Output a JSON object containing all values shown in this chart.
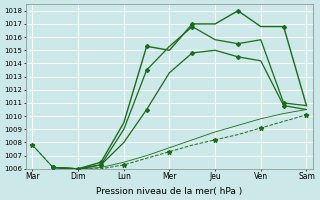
{
  "xlabel": "Pression niveau de la mer( hPa )",
  "xtick_labels": [
    "Mar",
    "Dim",
    "Lun",
    "Mer",
    "Jeu",
    "Ven",
    "Sam"
  ],
  "ylim": [
    1006,
    1018.5
  ],
  "yticks": [
    1006,
    1007,
    1008,
    1009,
    1010,
    1011,
    1012,
    1013,
    1014,
    1015,
    1016,
    1017,
    1018
  ],
  "background_color": "#cce8e8",
  "grid_color": "#ffffff",
  "line_color": "#1a6b1a",
  "figsize": [
    3.2,
    2.0
  ],
  "dpi": 100,
  "line1": {
    "x": [
      0,
      0.45,
      1.0,
      1.5,
      2.0,
      2.5,
      3.0,
      3.5,
      4.0,
      4.5,
      5.0,
      5.5,
      6.0
    ],
    "y": [
      1007.8,
      1006.1,
      1006.0,
      1006.0,
      1006.3,
      1006.8,
      1007.3,
      1007.8,
      1008.2,
      1008.6,
      1009.1,
      1009.6,
      1010.1
    ]
  },
  "line2": {
    "x": [
      0,
      0.45,
      1.0,
      1.5,
      2.0,
      2.5,
      3.0,
      3.5,
      4.0,
      4.5,
      5.0,
      5.5,
      6.0
    ],
    "y": [
      1007.8,
      1006.1,
      1006.0,
      1006.1,
      1006.5,
      1007.0,
      1007.6,
      1008.2,
      1008.8,
      1009.3,
      1009.8,
      1010.2,
      1010.5
    ]
  },
  "line3": {
    "x": [
      0.45,
      1.0,
      1.5,
      2.0,
      2.5,
      3.0,
      3.5,
      4.0,
      4.5,
      5.0,
      5.5,
      6.0
    ],
    "y": [
      1006.1,
      1006.0,
      1006.3,
      1008.0,
      1010.5,
      1013.3,
      1014.8,
      1015.0,
      1014.5,
      1014.2,
      1010.8,
      1010.5
    ]
  },
  "line4": {
    "x": [
      0.45,
      1.0,
      1.5,
      2.0,
      2.5,
      3.0,
      3.5,
      4.0,
      4.5,
      5.0,
      5.5,
      6.0
    ],
    "y": [
      1006.1,
      1006.0,
      1006.3,
      1009.0,
      1013.5,
      1015.3,
      1016.8,
      1015.8,
      1015.5,
      1015.8,
      1011.0,
      1010.8
    ]
  },
  "line5": {
    "x": [
      0.45,
      1.0,
      1.5,
      2.0,
      2.5,
      3.0,
      3.5,
      4.0,
      4.5,
      5.0,
      5.5,
      6.0
    ],
    "y": [
      1006.1,
      1006.0,
      1006.5,
      1009.5,
      1015.3,
      1015.0,
      1017.0,
      1017.0,
      1018.0,
      1016.8,
      1016.8,
      1010.8
    ]
  }
}
